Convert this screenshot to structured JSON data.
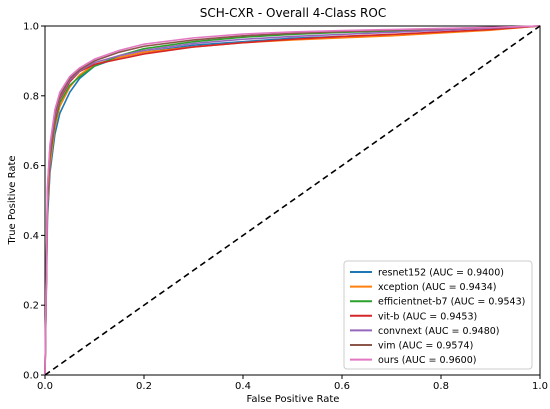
{
  "chart_data": {
    "type": "line",
    "title": "SCH-CXR - Overall 4-Class ROC",
    "xlabel": "False Positive Rate",
    "ylabel": "True Positive Rate",
    "xlim": [
      0.0,
      1.0
    ],
    "ylim": [
      0.0,
      1.0
    ],
    "x_ticks": [
      "0.0",
      "0.2",
      "0.4",
      "0.6",
      "0.8",
      "1.0"
    ],
    "y_ticks": [
      "0.0",
      "0.2",
      "0.4",
      "0.6",
      "0.8",
      "1.0"
    ],
    "legend_position": "bottom-right",
    "reference_line": {
      "style": "dashed",
      "color": "#000000",
      "x": [
        0,
        1
      ],
      "y": [
        0,
        1
      ]
    },
    "series": [
      {
        "name": "resnet152 (AUC = 0.9400)",
        "color": "#1f77b4",
        "x": [
          0,
          0.005,
          0.01,
          0.02,
          0.03,
          0.05,
          0.07,
          0.1,
          0.15,
          0.2,
          0.3,
          0.4,
          0.5,
          0.6,
          0.7,
          0.8,
          0.9,
          1.0
        ],
        "y": [
          0,
          0.45,
          0.58,
          0.69,
          0.75,
          0.81,
          0.85,
          0.885,
          0.91,
          0.925,
          0.945,
          0.955,
          0.965,
          0.97,
          0.975,
          0.982,
          0.99,
          1.0
        ]
      },
      {
        "name": "xception (AUC = 0.9434)",
        "color": "#ff7f0e",
        "x": [
          0,
          0.005,
          0.01,
          0.02,
          0.03,
          0.05,
          0.07,
          0.1,
          0.15,
          0.2,
          0.3,
          0.4,
          0.5,
          0.6,
          0.7,
          0.8,
          0.9,
          1.0
        ],
        "y": [
          0,
          0.48,
          0.6,
          0.71,
          0.77,
          0.825,
          0.86,
          0.89,
          0.91,
          0.925,
          0.94,
          0.952,
          0.96,
          0.966,
          0.972,
          0.98,
          0.988,
          1.0
        ]
      },
      {
        "name": "efficientnet-b7 (AUC = 0.9543)",
        "color": "#2ca02c",
        "x": [
          0,
          0.005,
          0.01,
          0.02,
          0.03,
          0.05,
          0.07,
          0.1,
          0.15,
          0.2,
          0.3,
          0.4,
          0.5,
          0.6,
          0.7,
          0.8,
          0.9,
          1.0
        ],
        "y": [
          0,
          0.5,
          0.62,
          0.72,
          0.78,
          0.83,
          0.855,
          0.885,
          0.915,
          0.935,
          0.955,
          0.968,
          0.976,
          0.982,
          0.986,
          0.99,
          0.995,
          1.0
        ]
      },
      {
        "name": "vit-b (AUC = 0.9453)",
        "color": "#d62728",
        "x": [
          0,
          0.005,
          0.01,
          0.02,
          0.03,
          0.05,
          0.07,
          0.1,
          0.15,
          0.2,
          0.3,
          0.4,
          0.5,
          0.6,
          0.7,
          0.8,
          0.9,
          1.0
        ],
        "y": [
          0,
          0.5,
          0.63,
          0.73,
          0.79,
          0.84,
          0.87,
          0.89,
          0.905,
          0.92,
          0.94,
          0.952,
          0.962,
          0.97,
          0.976,
          0.983,
          0.99,
          1.0
        ]
      },
      {
        "name": "convnext (AUC = 0.9480)",
        "color": "#9467bd",
        "x": [
          0,
          0.005,
          0.01,
          0.02,
          0.03,
          0.05,
          0.07,
          0.1,
          0.15,
          0.2,
          0.3,
          0.4,
          0.5,
          0.6,
          0.7,
          0.8,
          0.9,
          1.0
        ],
        "y": [
          0,
          0.52,
          0.64,
          0.74,
          0.795,
          0.845,
          0.872,
          0.895,
          0.915,
          0.93,
          0.95,
          0.962,
          0.97,
          0.976,
          0.982,
          0.988,
          0.994,
          1.0
        ]
      },
      {
        "name": "vim (AUC = 0.9574)",
        "color": "#8c564b",
        "x": [
          0,
          0.005,
          0.01,
          0.02,
          0.03,
          0.05,
          0.07,
          0.1,
          0.15,
          0.2,
          0.3,
          0.4,
          0.5,
          0.6,
          0.7,
          0.8,
          0.9,
          1.0
        ],
        "y": [
          0,
          0.53,
          0.65,
          0.75,
          0.8,
          0.85,
          0.875,
          0.9,
          0.925,
          0.942,
          0.96,
          0.972,
          0.979,
          0.984,
          0.988,
          0.992,
          0.996,
          1.0
        ]
      },
      {
        "name": "ours (AUC = 0.9600)",
        "color": "#e377c2",
        "x": [
          0,
          0.005,
          0.01,
          0.02,
          0.03,
          0.05,
          0.07,
          0.1,
          0.15,
          0.2,
          0.3,
          0.4,
          0.5,
          0.6,
          0.7,
          0.8,
          0.9,
          1.0
        ],
        "y": [
          0,
          0.54,
          0.66,
          0.76,
          0.81,
          0.855,
          0.88,
          0.905,
          0.93,
          0.948,
          0.966,
          0.977,
          0.983,
          0.987,
          0.99,
          0.993,
          0.996,
          1.0
        ]
      }
    ]
  }
}
